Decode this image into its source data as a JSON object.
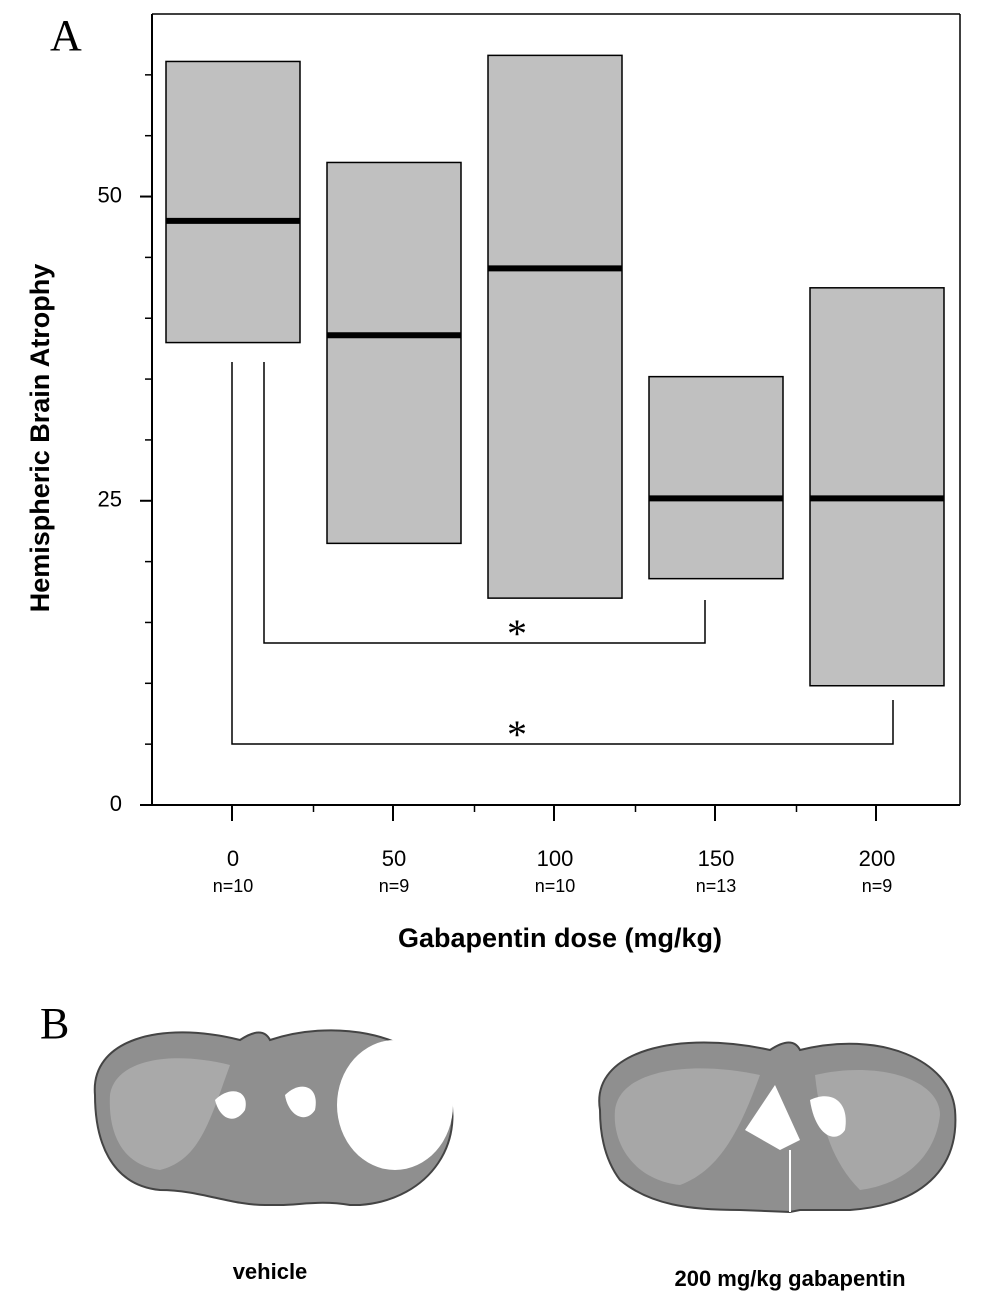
{
  "panel_labels": [
    "A",
    "B"
  ],
  "chart_data": {
    "type": "box",
    "y_label": "Hemispheric Brain Atrophy",
    "x_label": "Gabapentin dose (mg/kg)",
    "categories": [
      "0",
      "50",
      "100",
      "150",
      "200"
    ],
    "n_labels": [
      "n=10",
      "n=9",
      "n=10",
      "n=13",
      "n=9"
    ],
    "lower": [
      38,
      21.5,
      17,
      18.6,
      9.8
    ],
    "median": [
      48,
      38.6,
      44.1,
      25.2,
      25.2
    ],
    "upper": [
      61.1,
      52.8,
      61.6,
      35.2,
      42.5
    ],
    "color": "#c0c0c0",
    "ylim": [
      0,
      65
    ],
    "yticks": [
      0,
      25,
      50
    ],
    "minor_yticks": [
      5,
      10,
      15,
      20,
      30,
      35,
      40,
      45,
      55,
      60
    ],
    "significance": [
      {
        "label": "*",
        "from": "0",
        "to": "150"
      },
      {
        "label": "*",
        "from": "0",
        "to": "200"
      }
    ]
  },
  "images": [
    {
      "caption": "vehicle"
    },
    {
      "caption": "200 mg/kg gabapentin"
    }
  ]
}
